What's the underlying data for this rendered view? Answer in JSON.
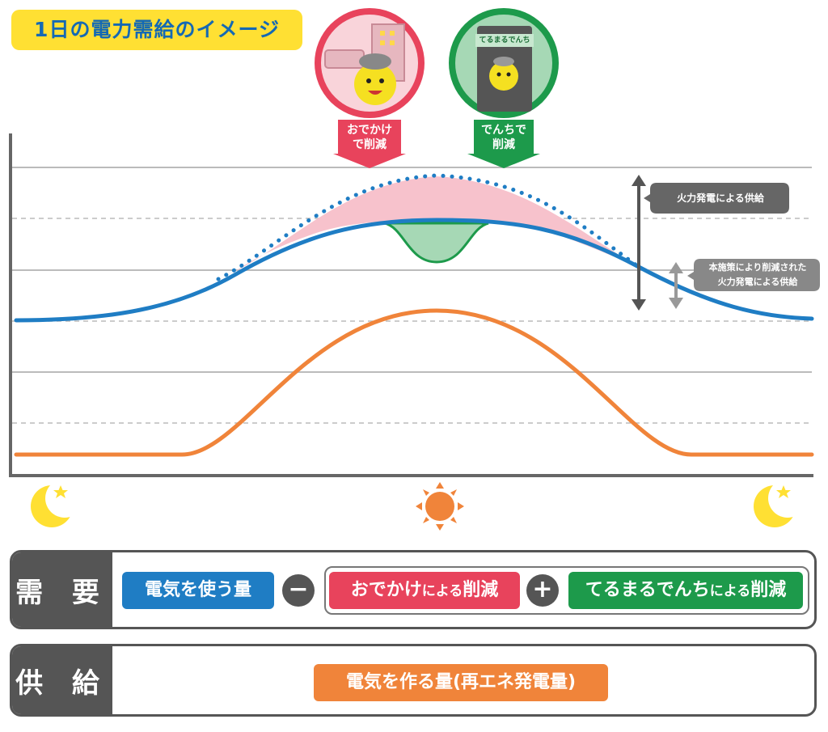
{
  "title": "1日の電力需給のイメージ",
  "colors": {
    "demand_blue": "#1f7dc4",
    "supply_orange": "#f0843a",
    "odekake_pink": "#e8435c",
    "terumaru_green": "#1d9a4b",
    "gray": "#555555",
    "yellow": "#ffe033"
  },
  "badges": {
    "odekake": {
      "line1": "おでかけ",
      "line2": "で削減"
    },
    "terumaru": {
      "line1": "でんちで",
      "line2": "削減",
      "box_label": "てるまるでんち"
    }
  },
  "annotations": {
    "thermal_supply": "火力発電による供給",
    "reduced_line1": "本施策により削減された",
    "reduced_line2": "火力発電による供給"
  },
  "icons": {
    "left": "moon-icon",
    "center": "sun-icon",
    "right": "moon-icon"
  },
  "demand_row": {
    "label": "需 要",
    "use_electricity": "電気を使う量",
    "minus": "−",
    "odekake_main": "おでかけ",
    "odekake_small": "による",
    "odekake_end": "削減",
    "plus": "+",
    "terumaru_main": "てるまるでんち",
    "terumaru_small": "による",
    "terumaru_end": "削減"
  },
  "supply_row": {
    "label": "供 給",
    "make_electricity": "電気を作る量(再エネ発電量)"
  }
}
